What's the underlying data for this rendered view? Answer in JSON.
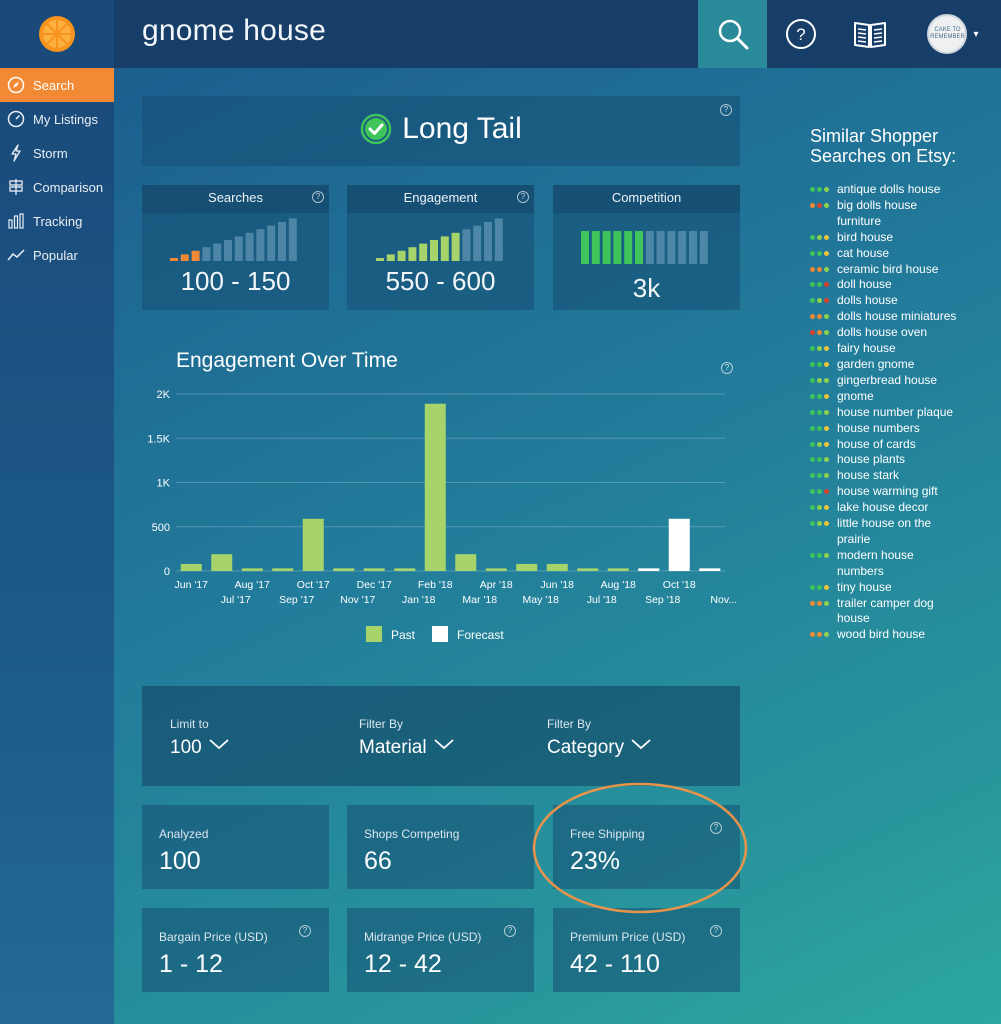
{
  "header": {
    "search_query": "gnome house",
    "icons": [
      "orange-logo-icon",
      "search-icon",
      "help-icon",
      "book-icon"
    ],
    "avatar_text": "CAKE TO REMEMBER"
  },
  "sidebar": {
    "items": [
      {
        "label": "Search",
        "icon": "compass-icon",
        "active": true
      },
      {
        "label": "My Listings",
        "icon": "gauge-icon",
        "active": false
      },
      {
        "label": "Storm",
        "icon": "lightning-icon",
        "active": false
      },
      {
        "label": "Comparison",
        "icon": "signpost-icon",
        "active": false
      },
      {
        "label": "Tracking",
        "icon": "bars-icon",
        "active": false
      },
      {
        "label": "Popular",
        "icon": "trend-icon",
        "active": false
      }
    ]
  },
  "verdict": {
    "label": "Long Tail",
    "icon": "check-circle-icon"
  },
  "metrics": [
    {
      "title": "Searches",
      "value": "100 - 150",
      "active_bars": 3,
      "total_bars": 12,
      "color": "#f28a35"
    },
    {
      "title": "Engagement",
      "value": "550 - 600",
      "active_bars": 8,
      "total_bars": 12,
      "color": "#a6d46a"
    },
    {
      "title": "Competition",
      "value": "3k",
      "active_bars": 6,
      "total_bars": 12,
      "color": "#3ec45a"
    }
  ],
  "chart_data": {
    "type": "bar",
    "title": "Engagement Over Time",
    "categories": [
      "Jun '17",
      "Jul '17",
      "Aug '17",
      "Sep '17",
      "Oct '17",
      "Nov '17",
      "Dec '17",
      "Jan '18",
      "Feb '18",
      "Mar '18",
      "Apr '18",
      "May '18",
      "Jun '18",
      "Jul '18",
      "Aug '18",
      "Sep '18",
      "Oct '18",
      "Nov..."
    ],
    "series": [
      {
        "name": "Past",
        "color": "#a6d46a",
        "values": [
          80,
          190,
          30,
          30,
          590,
          30,
          30,
          30,
          1890,
          190,
          30,
          80,
          80,
          30,
          30,
          null,
          null,
          null
        ]
      },
      {
        "name": "Forecast",
        "color": "#ffffff",
        "values": [
          null,
          null,
          null,
          null,
          null,
          null,
          null,
          null,
          null,
          null,
          null,
          null,
          null,
          null,
          null,
          30,
          590,
          30
        ]
      }
    ],
    "ylim": [
      0,
      2000
    ],
    "yticks": [
      "0",
      "500",
      "1K",
      "1.5K",
      "2K"
    ],
    "ytick_values": [
      0,
      500,
      1000,
      1500,
      2000
    ],
    "grid": true,
    "legend": "bottom"
  },
  "filters": [
    {
      "label": "Limit to",
      "value": "100"
    },
    {
      "label": "Filter By",
      "value": "Material"
    },
    {
      "label": "Filter By",
      "value": "Category"
    }
  ],
  "stats": [
    {
      "label": "Analyzed",
      "value": "100",
      "help": false
    },
    {
      "label": "Shops Competing",
      "value": "66",
      "help": false
    },
    {
      "label": "Free Shipping",
      "value": "23%",
      "help": true,
      "highlighted": true
    },
    {
      "label": "Bargain Price (USD)",
      "value": "1 - 12",
      "help": true
    },
    {
      "label": "Midrange Price (USD)",
      "value": "12 - 42",
      "help": true
    },
    {
      "label": "Premium Price (USD)",
      "value": "42 - 110",
      "help": true
    }
  ],
  "similar": {
    "title": "Similar Shopper Searches on Etsy:",
    "terms": [
      {
        "text": "antique dolls house",
        "dots": [
          "#3ec45a",
          "#3ec45a",
          "#8fd14f"
        ]
      },
      {
        "text": "big dolls house furniture",
        "dots": [
          "#f28a35",
          "#d8402f",
          "#8fd14f"
        ]
      },
      {
        "text": "bird house",
        "dots": [
          "#3ec45a",
          "#8fd14f",
          "#e8c43a"
        ]
      },
      {
        "text": "cat house",
        "dots": [
          "#3ec45a",
          "#3ec45a",
          "#e8c43a"
        ]
      },
      {
        "text": "ceramic bird house",
        "dots": [
          "#f28a35",
          "#f28a35",
          "#8fd14f"
        ]
      },
      {
        "text": "doll house",
        "dots": [
          "#3ec45a",
          "#3ec45a",
          "#d8402f"
        ]
      },
      {
        "text": "dolls house",
        "dots": [
          "#3ec45a",
          "#8fd14f",
          "#d8402f"
        ]
      },
      {
        "text": "dolls house miniatures",
        "dots": [
          "#f28a35",
          "#f28a35",
          "#8fd14f"
        ]
      },
      {
        "text": "dolls house oven",
        "dots": [
          "#d8402f",
          "#f28a35",
          "#8fd14f"
        ]
      },
      {
        "text": "fairy house",
        "dots": [
          "#3ec45a",
          "#8fd14f",
          "#e8c43a"
        ]
      },
      {
        "text": "garden gnome",
        "dots": [
          "#3ec45a",
          "#3ec45a",
          "#e8c43a"
        ]
      },
      {
        "text": "gingerbread house",
        "dots": [
          "#3ec45a",
          "#8fd14f",
          "#8fd14f"
        ]
      },
      {
        "text": "gnome",
        "dots": [
          "#3ec45a",
          "#3ec45a",
          "#e8c43a"
        ]
      },
      {
        "text": "house number plaque",
        "dots": [
          "#3ec45a",
          "#3ec45a",
          "#8fd14f"
        ]
      },
      {
        "text": "house numbers",
        "dots": [
          "#3ec45a",
          "#3ec45a",
          "#e8c43a"
        ]
      },
      {
        "text": "house of cards",
        "dots": [
          "#3ec45a",
          "#8fd14f",
          "#e8c43a"
        ]
      },
      {
        "text": "house plants",
        "dots": [
          "#3ec45a",
          "#3ec45a",
          "#8fd14f"
        ]
      },
      {
        "text": "house stark",
        "dots": [
          "#3ec45a",
          "#3ec45a",
          "#8fd14f"
        ]
      },
      {
        "text": "house warming gift",
        "dots": [
          "#3ec45a",
          "#3ec45a",
          "#d8402f"
        ]
      },
      {
        "text": "lake house decor",
        "dots": [
          "#3ec45a",
          "#8fd14f",
          "#e8c43a"
        ]
      },
      {
        "text": "little house on the prairie",
        "dots": [
          "#3ec45a",
          "#8fd14f",
          "#e8c43a"
        ]
      },
      {
        "text": "modern house numbers",
        "dots": [
          "#3ec45a",
          "#3ec45a",
          "#8fd14f"
        ]
      },
      {
        "text": "tiny house",
        "dots": [
          "#3ec45a",
          "#3ec45a",
          "#e8c43a"
        ]
      },
      {
        "text": "trailer camper dog house",
        "dots": [
          "#f28a35",
          "#f28a35",
          "#8fd14f"
        ]
      },
      {
        "text": "wood bird house",
        "dots": [
          "#f28a35",
          "#f28a35",
          "#8fd14f"
        ]
      }
    ]
  },
  "colors": {
    "accent": "#f28a35",
    "past_bar": "#a6d46a",
    "forecast_bar": "#ffffff",
    "highlight_circle": "#e6944a"
  }
}
